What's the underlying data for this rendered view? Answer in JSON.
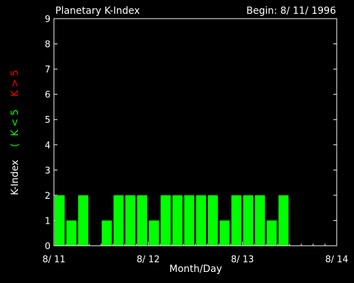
{
  "colors": {
    "background": "#000000",
    "foreground": "#ffffff",
    "bar": "#00ff00",
    "legend_low": "#00ff00",
    "legend_high": "#ff0000"
  },
  "chart_data": {
    "type": "bar",
    "title": "Planetary K-Index",
    "begin": "Begin: 8/ 11/ 1996",
    "xlabel": "Month/Day",
    "ylabel": "K-Index",
    "legend": {
      "open": "(",
      "low": "K < 5",
      "high": "K > 5"
    },
    "ylim": [
      0,
      9
    ],
    "yticks": [
      "0",
      "1",
      "2",
      "3",
      "4",
      "5",
      "6",
      "7",
      "8",
      "9"
    ],
    "xticks": [
      "8/ 11",
      "8/ 12",
      "8/ 13",
      "8/ 14"
    ],
    "interval_hours": 3,
    "values": [
      2,
      1,
      2,
      null,
      1,
      2,
      2,
      2,
      1,
      2,
      2,
      2,
      2,
      2,
      1,
      2,
      2,
      2,
      1,
      2,
      null,
      null,
      null,
      null
    ],
    "grid": false
  }
}
